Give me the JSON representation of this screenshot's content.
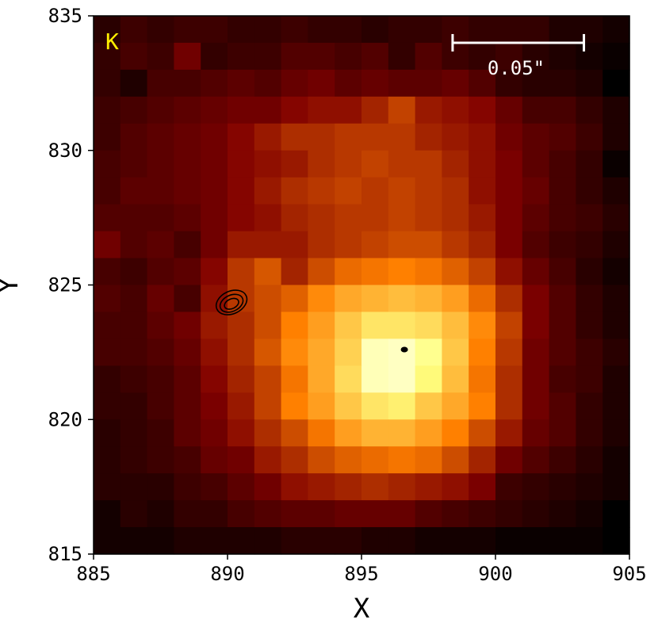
{
  "chart_data": {
    "type": "heatmap",
    "title": "",
    "xlabel": "X",
    "ylabel": "Y",
    "xlim": [
      885,
      905
    ],
    "ylim": [
      815,
      835
    ],
    "x_ticks": [
      885,
      890,
      895,
      900,
      905
    ],
    "y_ticks": [
      815,
      820,
      825,
      830,
      835
    ],
    "band_label": "K",
    "scale_bar_label": "0.05\"",
    "scale_bar_x": [
      898.4,
      903.3
    ],
    "scale_bar_y": 834.0,
    "colormap": "afmhot",
    "colors": {
      "band_label": "#ffee00",
      "scale_bar": "#ffffff",
      "axis": "#000000",
      "contour": "#000000"
    },
    "grid_origin": {
      "x": 885,
      "y": 815
    },
    "grid_rows_top_to_bottom": [
      [
        0.08,
        0.12,
        0.1,
        0.12,
        0.12,
        0.1,
        0.1,
        0.12,
        0.1,
        0.1,
        0.08,
        0.1,
        0.1,
        0.12,
        0.1,
        0.1,
        0.1,
        0.06,
        0.06,
        0.04
      ],
      [
        0.1,
        0.14,
        0.12,
        0.22,
        0.1,
        0.12,
        0.12,
        0.16,
        0.16,
        0.14,
        0.16,
        0.1,
        0.16,
        0.12,
        0.1,
        0.12,
        0.08,
        0.06,
        0.04,
        0.02
      ],
      [
        0.1,
        0.06,
        0.14,
        0.14,
        0.16,
        0.18,
        0.16,
        0.2,
        0.22,
        0.18,
        0.2,
        0.18,
        0.18,
        0.2,
        0.16,
        0.1,
        0.08,
        0.08,
        0.06,
        0.0
      ],
      [
        0.12,
        0.14,
        0.16,
        0.18,
        0.2,
        0.22,
        0.22,
        0.26,
        0.28,
        0.28,
        0.32,
        0.38,
        0.3,
        0.28,
        0.26,
        0.2,
        0.14,
        0.14,
        0.1,
        0.06
      ],
      [
        0.12,
        0.16,
        0.18,
        0.2,
        0.22,
        0.26,
        0.3,
        0.34,
        0.34,
        0.36,
        0.36,
        0.36,
        0.32,
        0.3,
        0.28,
        0.22,
        0.18,
        0.16,
        0.12,
        0.06
      ],
      [
        0.14,
        0.16,
        0.18,
        0.2,
        0.22,
        0.26,
        0.28,
        0.3,
        0.34,
        0.36,
        0.38,
        0.36,
        0.36,
        0.32,
        0.28,
        0.24,
        0.18,
        0.14,
        0.1,
        0.02
      ],
      [
        0.14,
        0.18,
        0.18,
        0.2,
        0.22,
        0.26,
        0.3,
        0.34,
        0.36,
        0.38,
        0.36,
        0.38,
        0.36,
        0.34,
        0.28,
        0.24,
        0.2,
        0.14,
        0.1,
        0.06
      ],
      [
        0.16,
        0.16,
        0.16,
        0.18,
        0.22,
        0.26,
        0.28,
        0.32,
        0.34,
        0.36,
        0.36,
        0.38,
        0.36,
        0.34,
        0.3,
        0.24,
        0.18,
        0.14,
        0.12,
        0.08
      ],
      [
        0.22,
        0.16,
        0.18,
        0.14,
        0.22,
        0.3,
        0.3,
        0.3,
        0.34,
        0.36,
        0.38,
        0.4,
        0.4,
        0.36,
        0.32,
        0.24,
        0.16,
        0.12,
        0.1,
        0.06
      ],
      [
        0.14,
        0.12,
        0.16,
        0.18,
        0.26,
        0.36,
        0.42,
        0.32,
        0.4,
        0.46,
        0.48,
        0.5,
        0.48,
        0.44,
        0.38,
        0.28,
        0.2,
        0.14,
        0.08,
        0.04
      ],
      [
        0.16,
        0.14,
        0.2,
        0.14,
        0.28,
        0.36,
        0.4,
        0.44,
        0.52,
        0.58,
        0.6,
        0.62,
        0.6,
        0.56,
        0.46,
        0.34,
        0.24,
        0.16,
        0.1,
        0.06
      ],
      [
        0.14,
        0.14,
        0.18,
        0.22,
        0.3,
        0.34,
        0.4,
        0.5,
        0.56,
        0.64,
        0.7,
        0.7,
        0.68,
        0.62,
        0.52,
        0.38,
        0.24,
        0.16,
        0.1,
        0.06
      ],
      [
        0.14,
        0.14,
        0.16,
        0.2,
        0.28,
        0.34,
        0.42,
        0.52,
        0.58,
        0.66,
        0.86,
        0.88,
        0.78,
        0.64,
        0.5,
        0.36,
        0.22,
        0.16,
        0.12,
        0.08
      ],
      [
        0.1,
        0.12,
        0.14,
        0.18,
        0.26,
        0.32,
        0.38,
        0.48,
        0.58,
        0.68,
        0.86,
        0.88,
        0.74,
        0.62,
        0.48,
        0.34,
        0.22,
        0.14,
        0.12,
        0.06
      ],
      [
        0.1,
        0.1,
        0.14,
        0.18,
        0.24,
        0.3,
        0.38,
        0.5,
        0.56,
        0.64,
        0.7,
        0.72,
        0.64,
        0.58,
        0.5,
        0.34,
        0.22,
        0.16,
        0.1,
        0.06
      ],
      [
        0.08,
        0.1,
        0.12,
        0.18,
        0.22,
        0.28,
        0.34,
        0.4,
        0.48,
        0.56,
        0.6,
        0.6,
        0.56,
        0.5,
        0.4,
        0.3,
        0.2,
        0.16,
        0.1,
        0.06
      ],
      [
        0.08,
        0.1,
        0.12,
        0.14,
        0.2,
        0.22,
        0.3,
        0.34,
        0.4,
        0.44,
        0.46,
        0.48,
        0.46,
        0.4,
        0.32,
        0.22,
        0.16,
        0.12,
        0.08,
        0.04
      ],
      [
        0.08,
        0.08,
        0.08,
        0.12,
        0.14,
        0.18,
        0.22,
        0.28,
        0.3,
        0.32,
        0.34,
        0.32,
        0.3,
        0.28,
        0.24,
        0.12,
        0.1,
        0.08,
        0.06,
        0.04
      ],
      [
        0.04,
        0.08,
        0.06,
        0.1,
        0.1,
        0.14,
        0.16,
        0.18,
        0.18,
        0.2,
        0.2,
        0.2,
        0.16,
        0.14,
        0.12,
        0.1,
        0.08,
        0.06,
        0.04,
        0.0
      ],
      [
        0.04,
        0.04,
        0.04,
        0.06,
        0.06,
        0.06,
        0.06,
        0.08,
        0.08,
        0.08,
        0.06,
        0.06,
        0.04,
        0.04,
        0.04,
        0.02,
        0.02,
        0.02,
        0.02,
        0.0
      ]
    ],
    "point_marker": {
      "x": 896.6,
      "y": 822.6
    },
    "contours": [
      {
        "cx": 890.15,
        "cy": 824.35,
        "rx": 0.6,
        "ry": 0.42
      },
      {
        "cx": 890.15,
        "cy": 824.32,
        "rx": 0.45,
        "ry": 0.3
      },
      {
        "cx": 890.15,
        "cy": 824.3,
        "rx": 0.28,
        "ry": 0.18
      }
    ]
  }
}
